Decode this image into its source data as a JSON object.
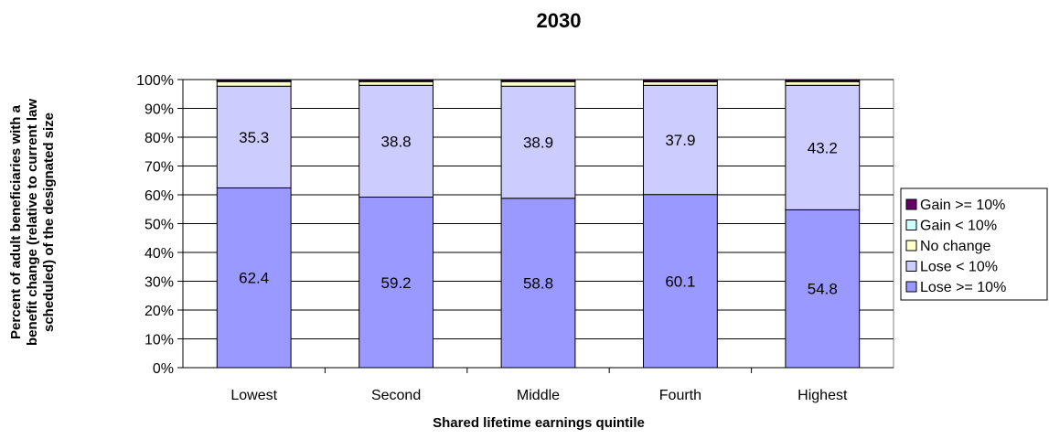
{
  "chart_data": {
    "type": "bar",
    "stacked": true,
    "title": "2030",
    "xlabel": "Shared lifetime earnings quintile",
    "ylabel_lines": [
      "Percent of adult beneficiaries with a",
      "benefit change (relative to current law",
      "scheduled) of the designated size"
    ],
    "ylim": [
      0,
      100
    ],
    "yticks": [
      "0%",
      "10%",
      "20%",
      "30%",
      "40%",
      "50%",
      "60%",
      "70%",
      "80%",
      "90%",
      "100%"
    ],
    "categories": [
      "Lowest",
      "Second",
      "Middle",
      "Fourth",
      "Highest"
    ],
    "legend_position": "right",
    "grid": true,
    "series": [
      {
        "name": "Lose >= 10%",
        "color": "#9999ff",
        "values": [
          62.4,
          59.2,
          58.8,
          60.1,
          54.8
        ],
        "labels": [
          "62.4",
          "59.2",
          "58.8",
          "60.1",
          "54.8"
        ]
      },
      {
        "name": "Lose < 10%",
        "color": "#ccccff",
        "values": [
          35.3,
          38.8,
          38.9,
          37.9,
          43.2
        ],
        "labels": [
          "35.3",
          "38.8",
          "38.9",
          "37.9",
          "43.2"
        ]
      },
      {
        "name": "No change",
        "color": "#ffffcc",
        "values": [
          1.6,
          1.3,
          1.6,
          1.2,
          1.3
        ],
        "labels": []
      },
      {
        "name": "Gain < 10%",
        "color": "#ccffff",
        "values": [
          0.2,
          0.2,
          0.2,
          0.2,
          0.2
        ],
        "labels": []
      },
      {
        "name": "Gain >= 10%",
        "color": "#660066",
        "values": [
          0.5,
          0.5,
          0.5,
          0.6,
          0.5
        ],
        "labels": []
      }
    ]
  }
}
